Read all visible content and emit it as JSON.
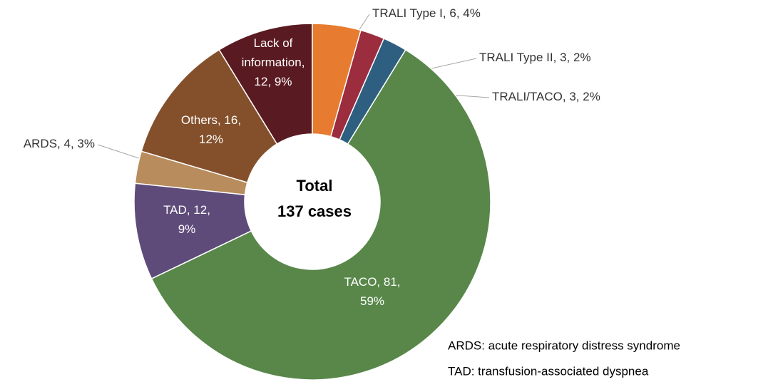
{
  "chart_data": {
    "type": "donut",
    "categories": [
      "TRALI Type I",
      "TRALI Type II",
      "TRALI/TACO",
      "TACO",
      "TAD",
      "ARDS",
      "Others",
      "Lack of information"
    ],
    "values": [
      6,
      3,
      3,
      81,
      12,
      4,
      16,
      12
    ],
    "value_labels": [
      "6, 4%",
      "3, 2%",
      "3, 2%",
      "81, 59%",
      "12, 9%",
      "4, 3%",
      "16, 12%",
      "12, 9%"
    ],
    "colors": [
      "#e77c30",
      "#9b2d3f",
      "#2f5f80",
      "#588749",
      "#5e4b7a",
      "#b88c5c",
      "#84502b",
      "#5a1a22"
    ],
    "center_label": [
      "Total",
      "137 cases"
    ],
    "footnotes": [
      "ARDS: acute respiratory distress syndrome",
      "TAD: transfusion-associated dyspnea"
    ]
  }
}
